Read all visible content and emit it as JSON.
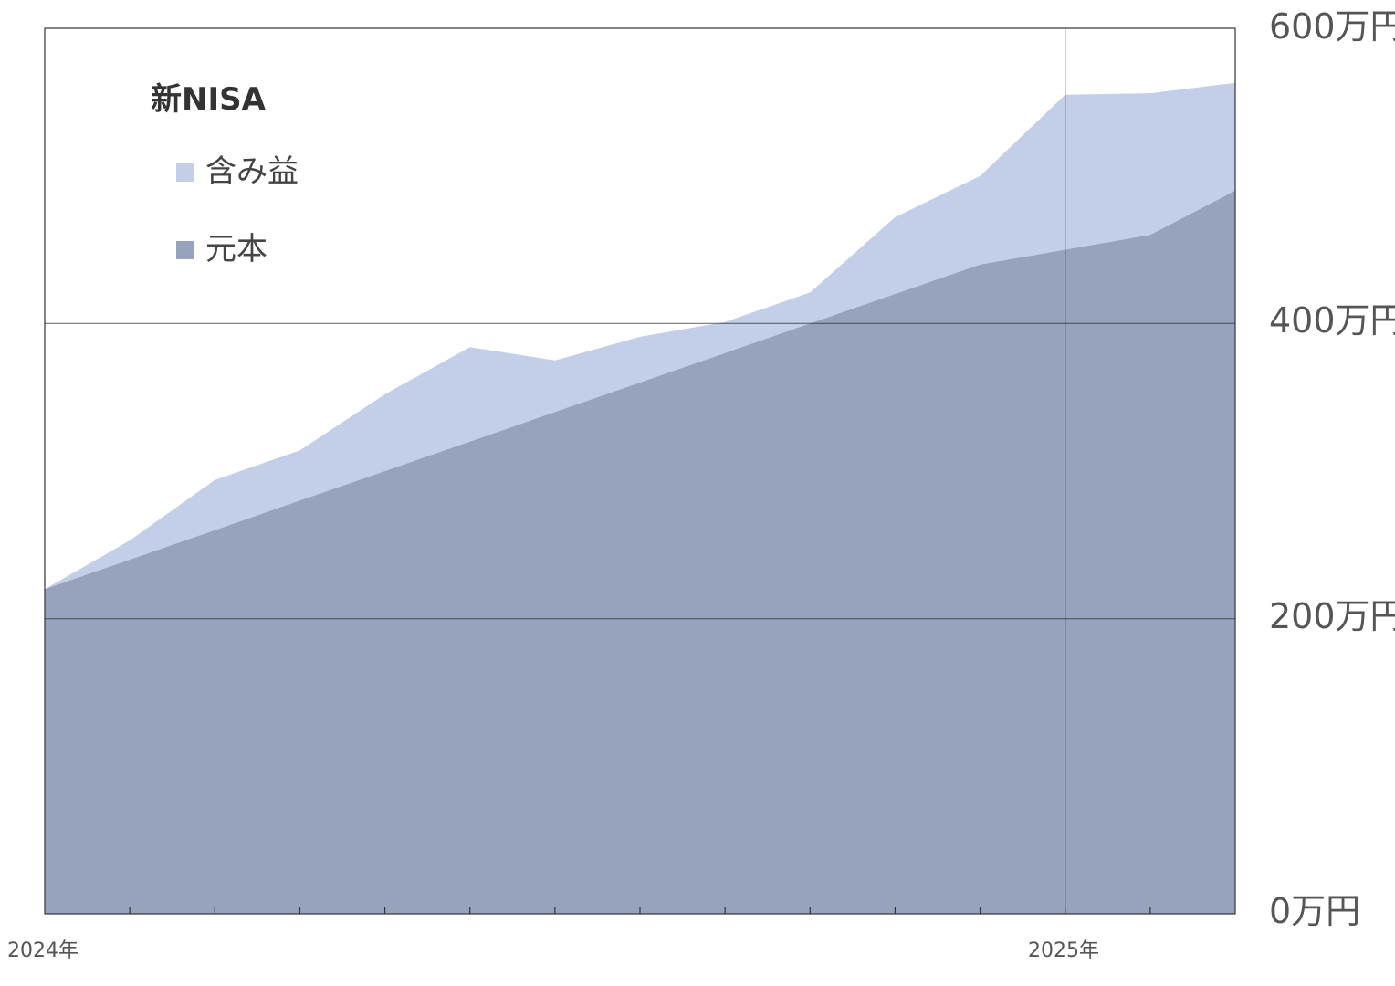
{
  "chart_data": {
    "type": "area",
    "stacked": true,
    "legend_title": "新NISA",
    "legend_position": "top-left",
    "y_unit_suffix": "万円",
    "ylim": [
      0,
      600
    ],
    "yticks": [
      "0万円",
      "200万円",
      "400万円",
      "600万円"
    ],
    "x_labels": [
      "2024年",
      "2025年"
    ],
    "x": [
      "2024-01",
      "2024-02",
      "2024-03",
      "2024-04",
      "2024-05",
      "2024-06",
      "2024-07",
      "2024-08",
      "2024-09",
      "2024-10",
      "2024-11",
      "2024-12",
      "2025-01",
      "2025-02",
      "2025-03"
    ],
    "series": [
      {
        "name": "元本",
        "color": "#97a3bd",
        "values": [
          220,
          240,
          260,
          280,
          300,
          320,
          340,
          360,
          380,
          400,
          420,
          440,
          450,
          460,
          490
        ]
      },
      {
        "name": "含み益",
        "color": "#c3cee8",
        "values": [
          0,
          13,
          34,
          34,
          52,
          64,
          35,
          31,
          21,
          21,
          52,
          60,
          105,
          96,
          73
        ]
      }
    ],
    "grid": {
      "horizontal_at": [
        200,
        400
      ],
      "vertical_at": [
        "2025-01"
      ]
    }
  }
}
